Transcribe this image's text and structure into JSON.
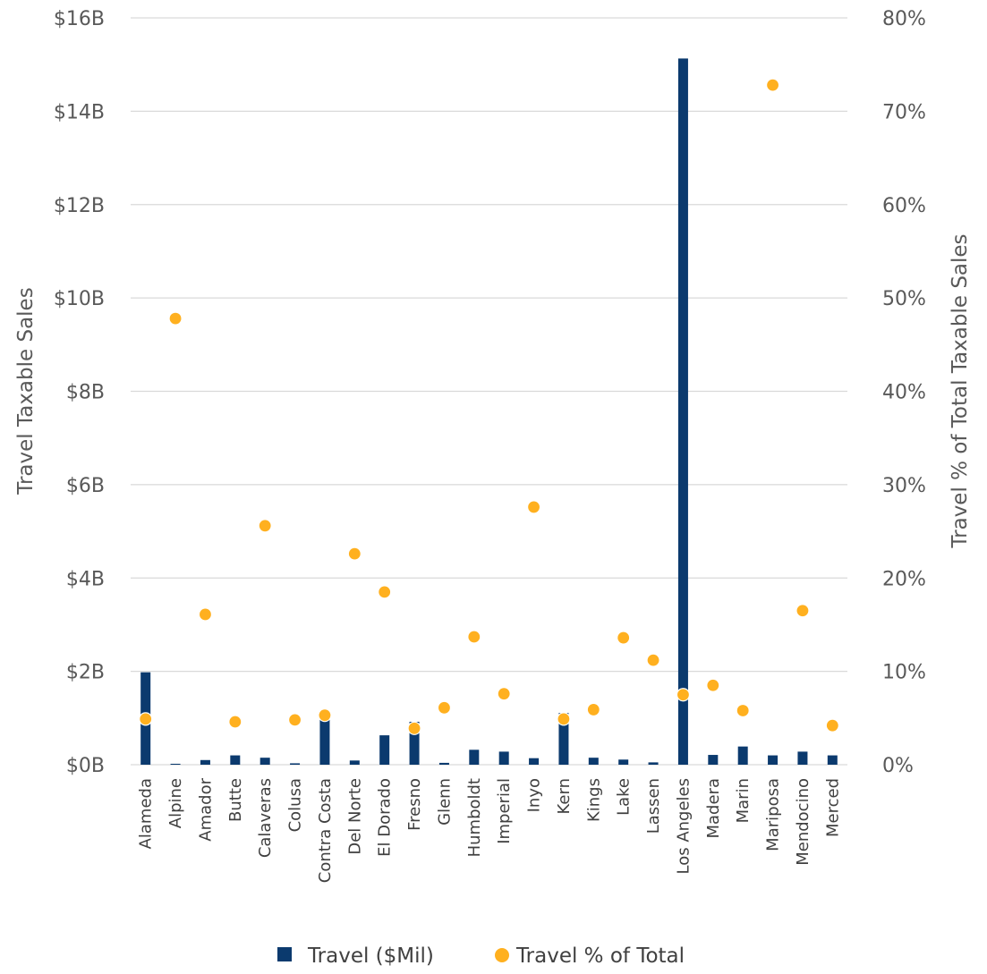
{
  "chart_data": {
    "type": "bar",
    "title": "",
    "categories": [
      "Alameda",
      "Alpine",
      "Amador",
      "Butte",
      "Calaveras",
      "Colusa",
      "Contra Costa",
      "Del Norte",
      "El Dorado",
      "Fresno",
      "Glenn",
      "Humboldt",
      "Imperial",
      "Inyo",
      "Kern",
      "Kings",
      "Lake",
      "Lassen",
      "Los Angeles",
      "Madera",
      "Marin",
      "Mariposa",
      "Mendocino",
      "Merced"
    ],
    "series": [
      {
        "name": "Travel ($Mil)",
        "type": "bar",
        "axis": "left",
        "color": "#0b3a6e",
        "values": [
          1980,
          20,
          100,
          200,
          150,
          30,
          1020,
          90,
          630,
          920,
          40,
          320,
          280,
          140,
          1110,
          150,
          110,
          50,
          15130,
          210,
          390,
          200,
          280,
          200
        ]
      },
      {
        "name": "Travel % of Total",
        "type": "scatter",
        "axis": "right",
        "color": "#ffb01f",
        "values": [
          4.9,
          47.8,
          16.1,
          4.6,
          25.6,
          4.8,
          5.3,
          22.6,
          18.5,
          3.9,
          6.1,
          13.7,
          7.6,
          27.6,
          4.9,
          5.9,
          13.6,
          11.2,
          7.5,
          8.5,
          5.8,
          72.8,
          16.5,
          4.2
        ]
      }
    ],
    "y_left": {
      "label": "Travel Taxable Sales",
      "range": [
        0,
        16000
      ],
      "ticks": [
        0,
        2000,
        4000,
        6000,
        8000,
        10000,
        12000,
        14000,
        16000
      ],
      "tick_labels": [
        "$0B",
        "$2B",
        "$4B",
        "$6B",
        "$8B",
        "$10B",
        "$12B",
        "$14B",
        "$16B"
      ]
    },
    "y_right": {
      "label": "Travel % of Total Taxable Sales",
      "range": [
        0,
        80
      ],
      "ticks": [
        0,
        10,
        20,
        30,
        40,
        50,
        60,
        70,
        80
      ],
      "tick_labels": [
        "0%",
        "10%",
        "20%",
        "30%",
        "40%",
        "50%",
        "60%",
        "70%",
        "80%"
      ]
    },
    "grid": true,
    "legend_position": "bottom",
    "legend": [
      {
        "label": "Travel ($Mil)",
        "marker": "square",
        "color": "#0b3a6e"
      },
      {
        "label": "Travel % of Total",
        "marker": "circle",
        "color": "#ffb01f"
      }
    ]
  }
}
